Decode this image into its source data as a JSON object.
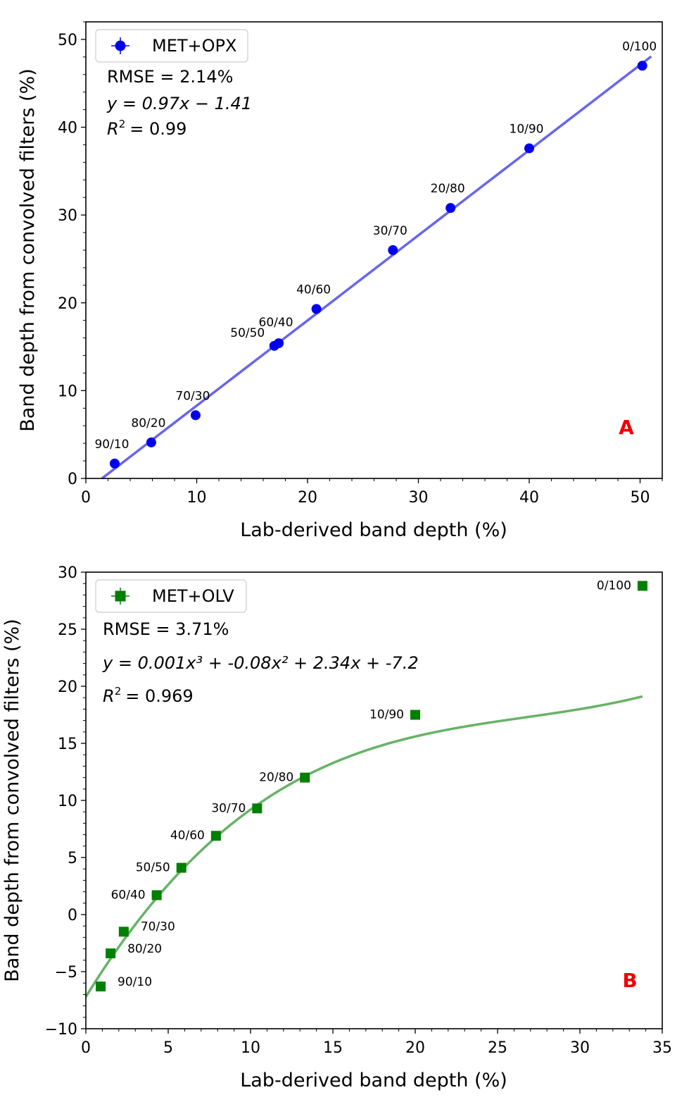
{
  "chart_data": [
    {
      "type": "scatter",
      "panel_letter": "A",
      "xlabel": "Lab-derived band depth (%)",
      "ylabel": "Band depth from convolved filters (%)",
      "xlim": [
        0,
        52
      ],
      "ylim": [
        0,
        52
      ],
      "xticks": [
        0,
        10,
        20,
        30,
        40,
        50
      ],
      "yticks": [
        0,
        10,
        20,
        30,
        40,
        50
      ],
      "grid": false,
      "legend_position": "top-left",
      "series": [
        {
          "name": "MET+OPX",
          "color": "#0000ee",
          "marker": "circle",
          "points": [
            {
              "label": "90/10",
              "x": 2.6,
              "y": 1.7
            },
            {
              "label": "80/20",
              "x": 5.9,
              "y": 4.1
            },
            {
              "label": "70/30",
              "x": 9.9,
              "y": 7.2
            },
            {
              "label": "50/50",
              "x": 17.0,
              "y": 15.1
            },
            {
              "label": "60/40",
              "x": 17.4,
              "y": 15.4
            },
            {
              "label": "40/60",
              "x": 20.8,
              "y": 19.3
            },
            {
              "label": "30/70",
              "x": 27.7,
              "y": 26.0
            },
            {
              "label": "20/80",
              "x": 32.9,
              "y": 30.8
            },
            {
              "label": "10/90",
              "x": 40.0,
              "y": 37.6
            },
            {
              "label": "0/100",
              "x": 50.2,
              "y": 47.0
            }
          ]
        }
      ],
      "fit": {
        "kind": "linear",
        "coefficients": [
          0.97,
          -1.41
        ],
        "x_range": [
          1.45,
          51.0
        ],
        "color": "#6666ee"
      },
      "annotations": {
        "rmse": "RMSE = 2.14%",
        "equation": "y = 0.97x − 1.41",
        "r2_value": "= 0.99"
      }
    },
    {
      "type": "scatter",
      "panel_letter": "B",
      "xlabel": "Lab-derived band depth (%)",
      "ylabel": "Band depth from convolved filters (%)",
      "xlim": [
        0,
        35
      ],
      "ylim": [
        -10,
        30
      ],
      "xticks": [
        0,
        5,
        10,
        15,
        20,
        25,
        30,
        35
      ],
      "yticks": [
        -10,
        -5,
        0,
        5,
        10,
        15,
        20,
        25,
        30
      ],
      "grid": false,
      "legend_position": "top-left",
      "series": [
        {
          "name": "MET+OLV",
          "color": "#008000",
          "marker": "square",
          "points": [
            {
              "label": "90/10",
              "x": 0.9,
              "y": -6.3
            },
            {
              "label": "80/20",
              "x": 1.5,
              "y": -3.4
            },
            {
              "label": "70/30",
              "x": 2.3,
              "y": -1.5
            },
            {
              "label": "60/40",
              "x": 4.3,
              "y": 1.7
            },
            {
              "label": "50/50",
              "x": 5.8,
              "y": 4.1
            },
            {
              "label": "40/60",
              "x": 7.9,
              "y": 6.9
            },
            {
              "label": "30/70",
              "x": 10.4,
              "y": 9.3
            },
            {
              "label": "20/80",
              "x": 13.3,
              "y": 12.0
            },
            {
              "label": "10/90",
              "x": 20.0,
              "y": 17.5
            },
            {
              "label": "0/100",
              "x": 33.8,
              "y": 28.8
            }
          ]
        }
      ],
      "fit": {
        "kind": "cubic",
        "coefficients": [
          0.001,
          -0.08,
          2.34,
          -7.2
        ],
        "x_range": [
          0,
          33.8
        ],
        "color": "#66b366"
      },
      "annotations": {
        "rmse": "RMSE = 3.71%",
        "equation": "y = 0.001x³ + -0.08x² + 2.34x + -7.2",
        "r2_value": "= 0.969"
      }
    }
  ]
}
